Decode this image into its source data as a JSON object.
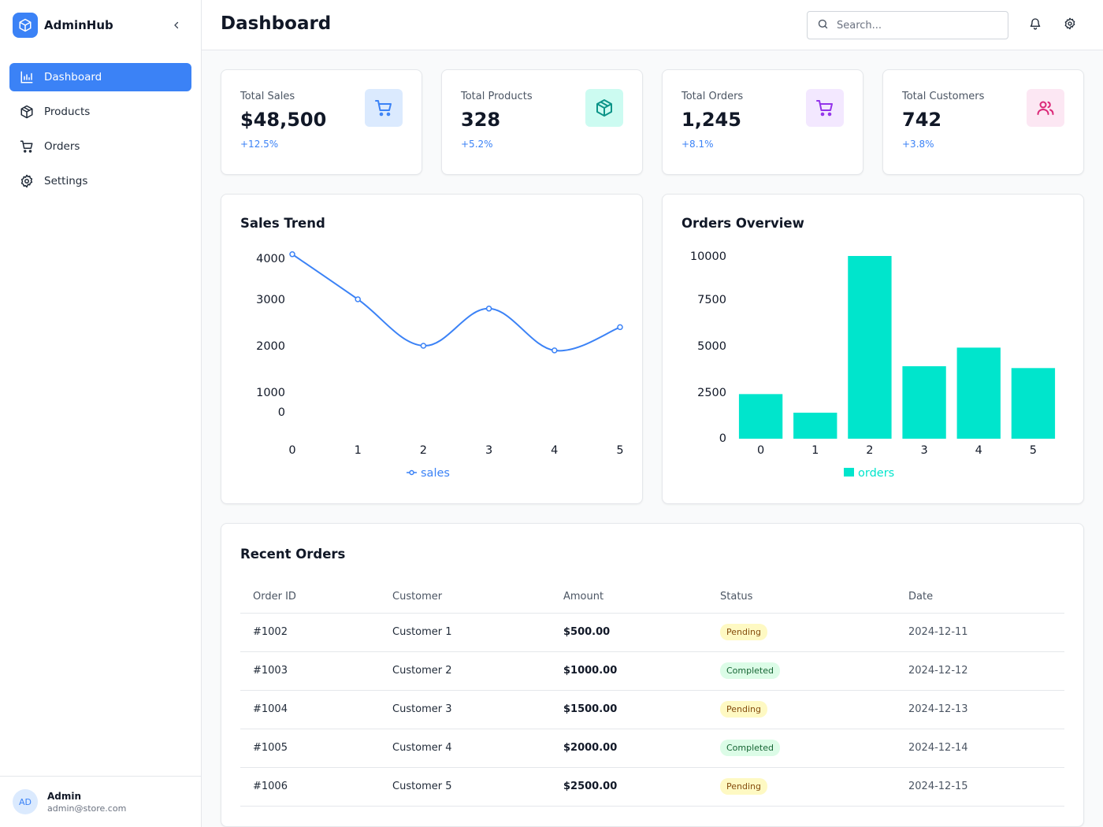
{
  "brand": {
    "name": "AdminHub"
  },
  "sidebar": {
    "items": [
      {
        "label": "Dashboard",
        "icon": "bar-chart-icon",
        "active": true
      },
      {
        "label": "Products",
        "icon": "package-icon",
        "active": false
      },
      {
        "label": "Orders",
        "icon": "cart-icon",
        "active": false
      },
      {
        "label": "Settings",
        "icon": "gear-icon",
        "active": false
      }
    ],
    "user": {
      "initials": "AD",
      "name": "Admin",
      "email": "admin@store.com"
    }
  },
  "header": {
    "title": "Dashboard",
    "search_placeholder": "Search..."
  },
  "stats": [
    {
      "label": "Total Sales",
      "value": "$48,500",
      "change": "+12.5%",
      "icon": "cart-icon",
      "icon_color": "#3b82f6",
      "icon_bg": "#dbeafe"
    },
    {
      "label": "Total Products",
      "value": "328",
      "change": "+5.2%",
      "icon": "package-icon",
      "icon_color": "#0d9488",
      "icon_bg": "#ccfbf1"
    },
    {
      "label": "Total Orders",
      "value": "1,245",
      "change": "+8.1%",
      "icon": "cart-icon",
      "icon_color": "#9333ea",
      "icon_bg": "#f3e8ff"
    },
    {
      "label": "Total Customers",
      "value": "742",
      "change": "+3.8%",
      "icon": "users-icon",
      "icon_color": "#db2777",
      "icon_bg": "#fce7f3"
    }
  ],
  "charts": {
    "sales_title": "Sales Trend",
    "orders_title": "Orders Overview"
  },
  "chart_data": [
    {
      "type": "line",
      "title": "Sales Trend",
      "x": [
        0,
        1,
        2,
        3,
        4,
        5
      ],
      "series": [
        {
          "name": "sales",
          "values": [
            4100,
            3000,
            2000,
            2800,
            1900,
            2400
          ],
          "color": "#3b82f6"
        }
      ],
      "y_ticks": [
        0,
        1000,
        2000,
        3000,
        4000
      ],
      "ylim": [
        0,
        4100
      ],
      "legend": "bottom"
    },
    {
      "type": "bar",
      "title": "Orders Overview",
      "categories": [
        "0",
        "1",
        "2",
        "3",
        "4",
        "5"
      ],
      "series": [
        {
          "name": "orders",
          "values": [
            2400,
            1400,
            10000,
            3900,
            4900,
            3800
          ],
          "color": "#00e5cc"
        }
      ],
      "y_ticks": [
        0,
        2500,
        5000,
        7500,
        10000
      ],
      "ylim": [
        0,
        10000
      ],
      "legend": "bottom"
    }
  ],
  "orders": {
    "title": "Recent Orders",
    "columns": [
      "Order ID",
      "Customer",
      "Amount",
      "Status",
      "Date"
    ],
    "rows": [
      {
        "id": "#1002",
        "customer": "Customer 1",
        "amount": "$500.00",
        "status": "Pending",
        "date": "2024-12-11"
      },
      {
        "id": "#1003",
        "customer": "Customer 2",
        "amount": "$1000.00",
        "status": "Completed",
        "date": "2024-12-12"
      },
      {
        "id": "#1004",
        "customer": "Customer 3",
        "amount": "$1500.00",
        "status": "Pending",
        "date": "2024-12-13"
      },
      {
        "id": "#1005",
        "customer": "Customer 4",
        "amount": "$2000.00",
        "status": "Completed",
        "date": "2024-12-14"
      },
      {
        "id": "#1006",
        "customer": "Customer 5",
        "amount": "$2500.00",
        "status": "Pending",
        "date": "2024-12-15"
      }
    ]
  }
}
